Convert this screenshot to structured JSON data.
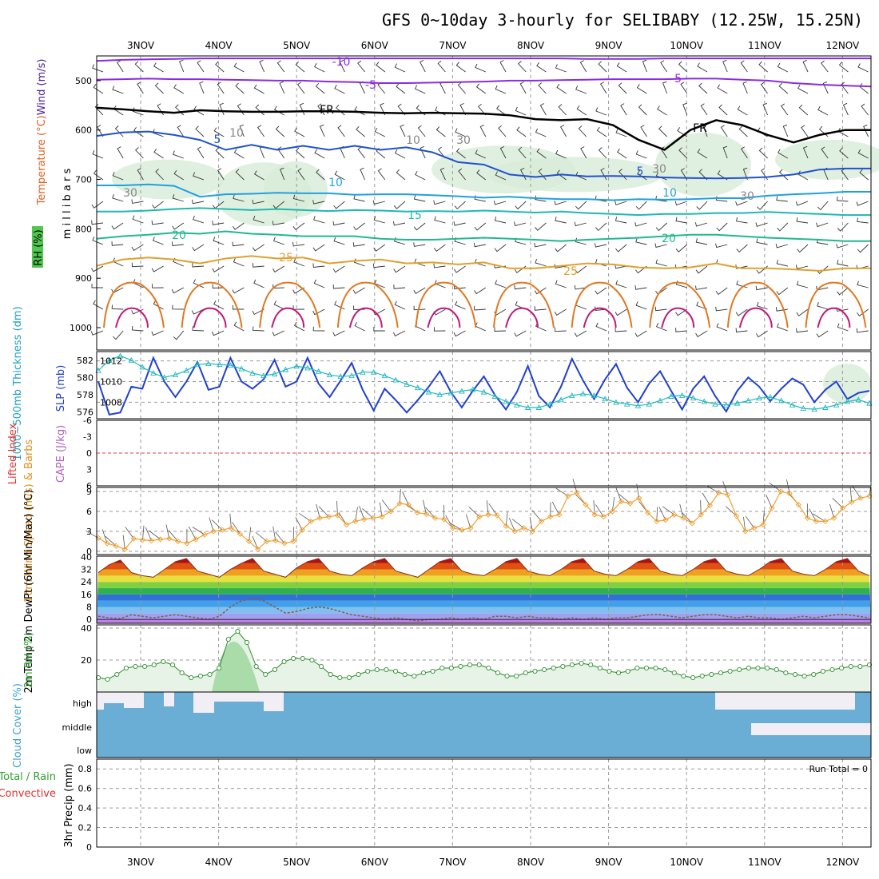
{
  "title": "GFS 0~10day 3-hourly for SELIBABY (12.25W, 15.25N)",
  "day_labels": [
    "3NOV",
    "4NOV",
    "5NOV",
    "6NOV",
    "7NOV",
    "8NOV",
    "9NOV",
    "10NOV",
    "11NOV",
    "12NOV"
  ],
  "colors": {
    "temp_contour": "#8a2be2",
    "fr": "#000000",
    "wind_barb": "#333333",
    "slp": "#2040d0",
    "thickness": "#20b8c0",
    "rh_fill": "#8fd18f",
    "rh_line": "#2e8b2e",
    "cloud": "#6aaed6",
    "cloud_bg": "#f2eef6",
    "wind10": "#f0a030"
  },
  "chart_data": [
    {
      "type": "contour",
      "name": "upper_air",
      "ylabel_parts": [
        "Wind (m/s)",
        "Temperature (°C)",
        "RH (%)"
      ],
      "yaxis_label": "m i l l i b a r s",
      "yticks": [
        500,
        600,
        700,
        800,
        900,
        1000
      ],
      "ylim": [
        450,
        1000
      ],
      "contour_labels": [
        "-10",
        "-5",
        "-5",
        "FR",
        "FR",
        "5",
        "5",
        "10",
        "10",
        "15",
        "20",
        "20",
        "25",
        "25",
        "10",
        "10",
        "30",
        "30",
        "30",
        "30"
      ],
      "contour_levels": [
        {
          "label": "-10",
          "color": "#8a2be2",
          "p": [
            460,
            458,
            457,
            456,
            455,
            455,
            455,
            455,
            455,
            455,
            455,
            455,
            455,
            455,
            455,
            455,
            455,
            455,
            455,
            456,
            456,
            456,
            455,
            455,
            455,
            455,
            455,
            455,
            455,
            455,
            455
          ]
        },
        {
          "label": "-5",
          "color": "#8a2be2",
          "p": [
            498,
            497,
            496,
            497,
            497,
            498,
            499,
            500,
            500,
            502,
            503,
            505,
            505,
            504,
            503,
            502,
            500,
            500,
            499,
            498,
            497,
            497,
            497,
            496,
            496,
            498,
            500,
            505,
            508,
            510,
            512
          ]
        },
        {
          "label": "FR",
          "color": "#000000",
          "p": [
            555,
            558,
            562,
            565,
            560,
            562,
            563,
            563,
            562,
            562,
            563,
            565,
            566,
            565,
            566,
            567,
            570,
            578,
            580,
            578,
            590,
            620,
            640,
            600,
            580,
            590,
            610,
            625,
            610,
            600,
            600
          ]
        },
        {
          "label": "5",
          "color": "#2050d0",
          "p": [
            612,
            605,
            603,
            610,
            620,
            640,
            630,
            640,
            632,
            640,
            632,
            640,
            635,
            645,
            665,
            670,
            690,
            695,
            690,
            694,
            693,
            694,
            696,
            697,
            698,
            697,
            695,
            690,
            680,
            678,
            678
          ]
        },
        {
          "label": "10",
          "color": "#20a0e0",
          "p": [
            712,
            712,
            710,
            713,
            735,
            730,
            729,
            727,
            728,
            728,
            731,
            730,
            730,
            732,
            734,
            737,
            735,
            738,
            740,
            740,
            742,
            740,
            741,
            740,
            738,
            738,
            733,
            730,
            728,
            725,
            725
          ]
        },
        {
          "label": "15",
          "color": "#20b8b0",
          "p": [
            765,
            765,
            763,
            760,
            758,
            760,
            762,
            760,
            762,
            764,
            762,
            763,
            765,
            764,
            765,
            763,
            765,
            767,
            765,
            768,
            770,
            772,
            770,
            770,
            768,
            768,
            766,
            768,
            770,
            772,
            772
          ]
        },
        {
          "label": "20",
          "color": "#20b890",
          "p": [
            820,
            815,
            812,
            808,
            810,
            805,
            810,
            812,
            815,
            815,
            815,
            820,
            822,
            822,
            820,
            818,
            820,
            822,
            825,
            822,
            820,
            818,
            815,
            812,
            812,
            815,
            818,
            820,
            822,
            825,
            825
          ]
        },
        {
          "label": "25",
          "color": "#e0a030",
          "p": [
            875,
            862,
            858,
            862,
            870,
            860,
            855,
            860,
            858,
            870,
            865,
            862,
            870,
            868,
            872,
            868,
            880,
            880,
            875,
            870,
            872,
            878,
            880,
            878,
            870,
            880,
            880,
            882,
            885,
            880,
            880
          ]
        }
      ]
    },
    {
      "type": "line",
      "name": "slp_thickness",
      "ylabel_left": "1000~500mb Thickness (dm)",
      "ylabel_right": "SLP (mb)",
      "yticks_left": [
        576,
        578,
        580,
        582
      ],
      "yticks_right": [
        1008,
        1010,
        1012
      ],
      "ylim_slp": [
        1006.4,
        1012.9
      ],
      "series": [
        {
          "name": "SLP",
          "values": [
            1010,
            1006.8,
            1007,
            1009.5,
            1009.3,
            1012.3,
            1010,
            1008.5,
            1010,
            1011.9,
            1009.2,
            1009.5,
            1012.3,
            1010,
            1009.3,
            1010.2,
            1012.1,
            1009.5,
            1010,
            1012.3,
            1009.8,
            1008.5,
            1010.1,
            1011.8,
            1009.2,
            1007.2,
            1009.3,
            1008.2,
            1007,
            1008.2,
            1009.5,
            1011,
            1009,
            1007.5,
            1009.1,
            1010.5,
            1008.7,
            1007.3,
            1009,
            1011.5,
            1008.6,
            1007.5,
            1009.5,
            1012.2,
            1010.1,
            1008.3,
            1010.2,
            1011.7,
            1009.4,
            1008,
            1009.8,
            1011,
            1009.1,
            1007.3,
            1009.3,
            1010.5,
            1008.6,
            1007.1,
            1009.1,
            1010.4,
            1009.5,
            1008.1,
            1009.3,
            1010.3,
            1009.7,
            1008,
            1009.2,
            1010,
            1008.3,
            1008.9,
            1009.1
          ]
        },
        {
          "name": "Thickness",
          "values": [
            580.8,
            582,
            582.5,
            582,
            581.2,
            580.5,
            580,
            580.3,
            580.8,
            581.5,
            581.6,
            581.5,
            581.4,
            581,
            580.5,
            580.2,
            580.4,
            580.9,
            581.3,
            581.1,
            580.7,
            580.3,
            580.1,
            580.2,
            580.6,
            580.6,
            580.2,
            579.7,
            579.2,
            578.8,
            578.3,
            578,
            578.2,
            578.4,
            578.6,
            578.3,
            577.8,
            577.2,
            576.8,
            576.5,
            576.5,
            576.9,
            577.4,
            577.9,
            578.1,
            577.9,
            577.5,
            577.1,
            576.9,
            576.7,
            576.9,
            577.3,
            577.8,
            577.9,
            577.6,
            577.2,
            576.9,
            576.8,
            577,
            577.3,
            577.6,
            577.7,
            577.3,
            576.8,
            576.4,
            576.3,
            576.5,
            576.8,
            577.2,
            577.4,
            577
          ]
        }
      ]
    },
    {
      "type": "line",
      "name": "cape_li",
      "ylabel_left": "Lifted Index",
      "ylabel_right": "CAPE (J/kg)",
      "yticks": [
        "-6",
        "-3",
        "0",
        "3",
        "6"
      ],
      "ylim": [
        -6,
        6
      ]
    },
    {
      "type": "line",
      "name": "wind10m",
      "ylabel": "10m Wind Speed (m/s) & Barbs",
      "yticks": [
        0,
        3,
        6,
        9
      ],
      "ylim": [
        -0.5,
        9.6
      ],
      "series": [
        {
          "name": "10m Wind Speed",
          "values": [
            2,
            1.2,
            0.8,
            0.3,
            1.9,
            1.7,
            1.6,
            1.8,
            1.9,
            1.5,
            1.2,
            1.8,
            2.5,
            3,
            3.2,
            3.5,
            2.6,
            1.5,
            0.3,
            1.5,
            1.6,
            1.2,
            1.5,
            3.2,
            4.5,
            5,
            5.2,
            5.4,
            4,
            4.5,
            4.8,
            5,
            5.2,
            6,
            7.2,
            7,
            5.8,
            5.6,
            5,
            4.8,
            3.5,
            3.2,
            3.5,
            5.2,
            5.5,
            5.4,
            3.8,
            3,
            3.5,
            3,
            4.5,
            5.2,
            5.5,
            8.3,
            8.8,
            7,
            5.5,
            5.2,
            6,
            7.5,
            7.2,
            8,
            5.8,
            4.5,
            4.7,
            5.5,
            5,
            4.2,
            5.5,
            6.9,
            8.8,
            8.5,
            5.3,
            3,
            3.5,
            4,
            6.5,
            9,
            8.7,
            7,
            5,
            4.5,
            4.5,
            5,
            6.5,
            7.4,
            8,
            8.3
          ]
        }
      ]
    },
    {
      "type": "area",
      "name": "temp2m",
      "ylabel": "2m Temp 2m DewPt (6hr Min/Max) (°C)",
      "yticks": [
        0,
        8,
        16,
        24,
        32,
        40
      ],
      "ylim": [
        -2.5,
        40.5
      ],
      "series": [
        {
          "name": "2m Temp",
          "values": [
            30,
            35,
            38,
            30,
            28,
            27,
            32,
            37,
            39,
            31,
            29,
            27,
            32,
            36,
            39,
            31,
            29,
            27,
            33,
            37,
            39,
            31,
            29,
            28,
            33,
            37,
            39,
            31,
            29,
            27,
            32,
            37,
            39,
            31,
            29,
            28,
            32,
            37,
            39,
            31,
            29,
            28,
            32,
            37,
            39,
            31,
            29,
            28,
            32,
            37,
            39,
            31,
            29,
            28,
            32,
            37,
            39,
            31,
            29,
            28,
            32,
            37,
            39,
            31,
            29,
            28,
            32,
            37,
            39,
            31,
            28
          ]
        },
        {
          "name": "2m DewPt",
          "values": [
            2,
            1,
            0.5,
            3,
            2,
            1,
            2,
            3,
            2,
            1,
            0,
            2,
            8,
            12,
            13,
            12,
            8,
            4,
            5,
            7,
            8,
            7,
            5,
            3,
            2,
            1,
            0,
            1,
            0,
            -1,
            0,
            0,
            1,
            0,
            1,
            0,
            2,
            2,
            1,
            2,
            1,
            1,
            0,
            1,
            0,
            1,
            0,
            1,
            1,
            2,
            3,
            3,
            2,
            1,
            2,
            3,
            3,
            2,
            1,
            2,
            1,
            1,
            0,
            1,
            2,
            1,
            2,
            3,
            3,
            2,
            1
          ]
        }
      ]
    },
    {
      "type": "area",
      "name": "rh2m",
      "ylabel": "2m RH (%)",
      "yticks": [
        20,
        40
      ],
      "ylim": [
        0,
        42
      ],
      "series": [
        {
          "name": "2m RH",
          "values": [
            9,
            8,
            11,
            15,
            16,
            16,
            17,
            19,
            17,
            12,
            9,
            10,
            11,
            15,
            33,
            38,
            31,
            16,
            11,
            14,
            19,
            21,
            21,
            20,
            16,
            11,
            9,
            9,
            11,
            13,
            14,
            14,
            13,
            11,
            10,
            12,
            13,
            15,
            15,
            16,
            17,
            17,
            15,
            12,
            10,
            10,
            12,
            13,
            14,
            15,
            16,
            17,
            18,
            17,
            15,
            13,
            12,
            13,
            15,
            15,
            15,
            14,
            12,
            10,
            9,
            10,
            11,
            12,
            13,
            14,
            15,
            15,
            15,
            14,
            12,
            11,
            10,
            11,
            13,
            14,
            15,
            16,
            16,
            17
          ]
        }
      ]
    },
    {
      "type": "area",
      "name": "cloud",
      "ylabel": "Cloud Cover (%)",
      "ytick_labels": [
        "high",
        "middle",
        "low"
      ]
    },
    {
      "type": "bar",
      "name": "precip",
      "ylabel_parts": [
        "Total / Rain",
        "Convective"
      ],
      "ylabel": "3hr Precip (mm)",
      "yticks": [
        0,
        0.2,
        0.4,
        0.6,
        0.8
      ],
      "ylim": [
        0,
        0.9
      ],
      "annotation": "Run Total = 0"
    }
  ]
}
